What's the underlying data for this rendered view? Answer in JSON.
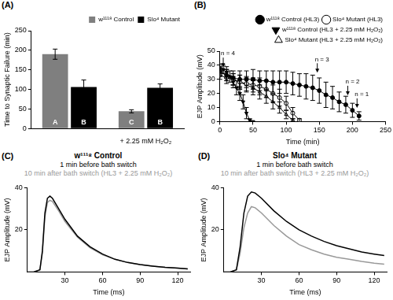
{
  "chart_data": [
    {
      "panel_label": "(A)",
      "type": "bar",
      "y_label": "Time to Synaptic Failure (min)",
      "categories": [
        null,
        "+ 2.25 mM H₂O₂"
      ],
      "series": [
        {
          "name": "w¹¹¹⁸ Control",
          "color": "#7f7f7f",
          "values": [
            190,
            44
          ],
          "errors": [
            13,
            4
          ],
          "bar_letters": [
            "A",
            "C"
          ]
        },
        {
          "name": "Slo⁴ Mutant",
          "color": "#000000",
          "values": [
            106,
            104
          ],
          "errors": [
            18,
            10
          ],
          "bar_letters": [
            "B",
            "B"
          ]
        }
      ],
      "ylim": [
        0,
        250
      ],
      "yticks": [
        0,
        50,
        100,
        150,
        200,
        250
      ],
      "grid": false,
      "legend": "top-right"
    },
    {
      "panel_label": "(B)",
      "type": "line",
      "x_label": "Time (min)",
      "y_label": "EJP Amplitude (mV)",
      "series": [
        {
          "name": "w¹¹¹⁸ Control (HL3)",
          "color": "#000000",
          "marker": "circle",
          "line_style": "solid",
          "x": [
            0,
            10,
            20,
            30,
            40,
            50,
            60,
            70,
            80,
            90,
            100,
            110,
            120,
            130,
            140,
            150,
            160,
            170,
            180,
            190,
            200,
            210
          ],
          "values": [
            36,
            33,
            31,
            30,
            30,
            30,
            29,
            29,
            28,
            28,
            28,
            27,
            26,
            25,
            24,
            22,
            19,
            17,
            14,
            12,
            8,
            4
          ],
          "errors": [
            3,
            4,
            5,
            6,
            6,
            7,
            7,
            7,
            8,
            8,
            8,
            8,
            8,
            9,
            9,
            9,
            9,
            8,
            7,
            6,
            5,
            3
          ]
        },
        {
          "name": "Slo⁴ Mutant (HL3)",
          "color": "#000000",
          "marker": "open_circle",
          "line_style": "solid",
          "x": [
            0,
            10,
            20,
            30,
            40,
            50,
            60,
            70,
            80,
            90,
            100,
            110,
            120
          ],
          "values": [
            33,
            31,
            30,
            28,
            27,
            26,
            25,
            23,
            20,
            17,
            13,
            6,
            1
          ],
          "errors": [
            3,
            4,
            4,
            5,
            5,
            5,
            6,
            6,
            6,
            6,
            5,
            4,
            1
          ]
        },
        {
          "name": "w¹¹¹⁸ Control (HL3 + 2.25 mM H₂O₂)",
          "color": "#000000",
          "marker": "down_triangle",
          "line_style": "solid",
          "x": [
            0,
            5,
            10,
            15,
            20,
            25,
            30,
            35,
            40,
            45,
            50
          ],
          "values": [
            38,
            37,
            35,
            32,
            28,
            24,
            20,
            14,
            6,
            1,
            0
          ],
          "errors": [
            3,
            3,
            4,
            4,
            4,
            5,
            5,
            5,
            4,
            1,
            0
          ]
        },
        {
          "name": "Slo⁴ Mutant (HL3 + 2.25 mM H₂O₂)",
          "color": "#000000",
          "marker": "open_triangle",
          "line_style": "solid",
          "x": [
            0,
            10,
            20,
            30,
            40,
            50,
            60,
            70,
            80,
            90,
            100,
            110
          ],
          "values": [
            35,
            33,
            30,
            28,
            26,
            24,
            21,
            18,
            14,
            10,
            5,
            1
          ],
          "errors": [
            3,
            4,
            4,
            5,
            5,
            5,
            5,
            5,
            5,
            4,
            3,
            1
          ]
        }
      ],
      "annotations": [
        {
          "text": "n = 4",
          "x": 5,
          "y": 46
        },
        {
          "text": "n = 3",
          "x": 147,
          "y": 42
        },
        {
          "text": "n = 2",
          "x": 193,
          "y": 26
        },
        {
          "text": "n = 1",
          "x": 207,
          "y": 17
        }
      ],
      "xlim": [
        0,
        250
      ],
      "xticks": [
        0,
        50,
        100,
        150,
        200,
        250
      ],
      "ylim": [
        0,
        50
      ],
      "yticks": [
        0,
        10,
        20,
        30,
        40,
        50
      ],
      "grid": false,
      "legend": "top-right"
    },
    {
      "panel_label": "(C)",
      "type": "line",
      "title": "w¹¹¹⁸ Control",
      "x_label": "Time (ms)",
      "y_label": "EJP Amplitude (mV)",
      "x": [
        0,
        5,
        10,
        12,
        14,
        16,
        18,
        20,
        25,
        30,
        40,
        50,
        60,
        70,
        80,
        90,
        100,
        110,
        120,
        128
      ],
      "series": [
        {
          "name": "1 min before bath switch",
          "color": "#000000",
          "values": [
            0,
            0,
            1,
            10,
            28,
            35,
            36,
            35,
            30,
            25,
            17,
            12,
            8.5,
            6,
            4.5,
            3.5,
            2.8,
            2.2,
            1.8,
            1.5
          ]
        },
        {
          "name": "10 min after bath switch (HL3 + 2.25 mM H₂O₂)",
          "color": "#999999",
          "values": [
            0,
            0,
            1,
            9,
            26,
            33,
            34,
            33.5,
            29,
            24,
            16.5,
            11.5,
            8.2,
            6,
            4.5,
            3.5,
            2.8,
            2.2,
            1.8,
            1.5
          ]
        }
      ],
      "xlim": [
        0,
        130
      ],
      "xticks": [
        30,
        60,
        90,
        120
      ],
      "ylim": [
        0,
        40
      ],
      "yticks": [
        20,
        40
      ],
      "grid": false
    },
    {
      "panel_label": "(D)",
      "type": "line",
      "title": "Slo⁴ Mutant",
      "x_label": "Time (ms)",
      "y_label": "EJP Amplitude (mV)",
      "x": [
        0,
        5,
        10,
        13,
        16,
        19,
        22,
        25,
        30,
        40,
        50,
        60,
        70,
        80,
        90,
        100,
        110,
        120,
        128
      ],
      "series": [
        {
          "name": "1 min before bath switch",
          "color": "#000000",
          "values": [
            0,
            0,
            1,
            12,
            28,
            36,
            38,
            37.5,
            35,
            29,
            24,
            20,
            17,
            14.5,
            12.5,
            11,
            9.5,
            8.5,
            7.8
          ]
        },
        {
          "name": "10 min after bath switch (HL3 + 2.25 mM H₂O₂)",
          "color": "#999999",
          "values": [
            0,
            0,
            1,
            9,
            21,
            28,
            31,
            30.5,
            28,
            22,
            17,
            13,
            10.5,
            8.5,
            7,
            6,
            5,
            4.2,
            3.7
          ]
        }
      ],
      "xlim": [
        0,
        130
      ],
      "xticks": [
        30,
        60,
        90,
        120
      ],
      "ylim": [
        0,
        40
      ],
      "yticks": [
        20,
        40
      ],
      "grid": false
    }
  ]
}
